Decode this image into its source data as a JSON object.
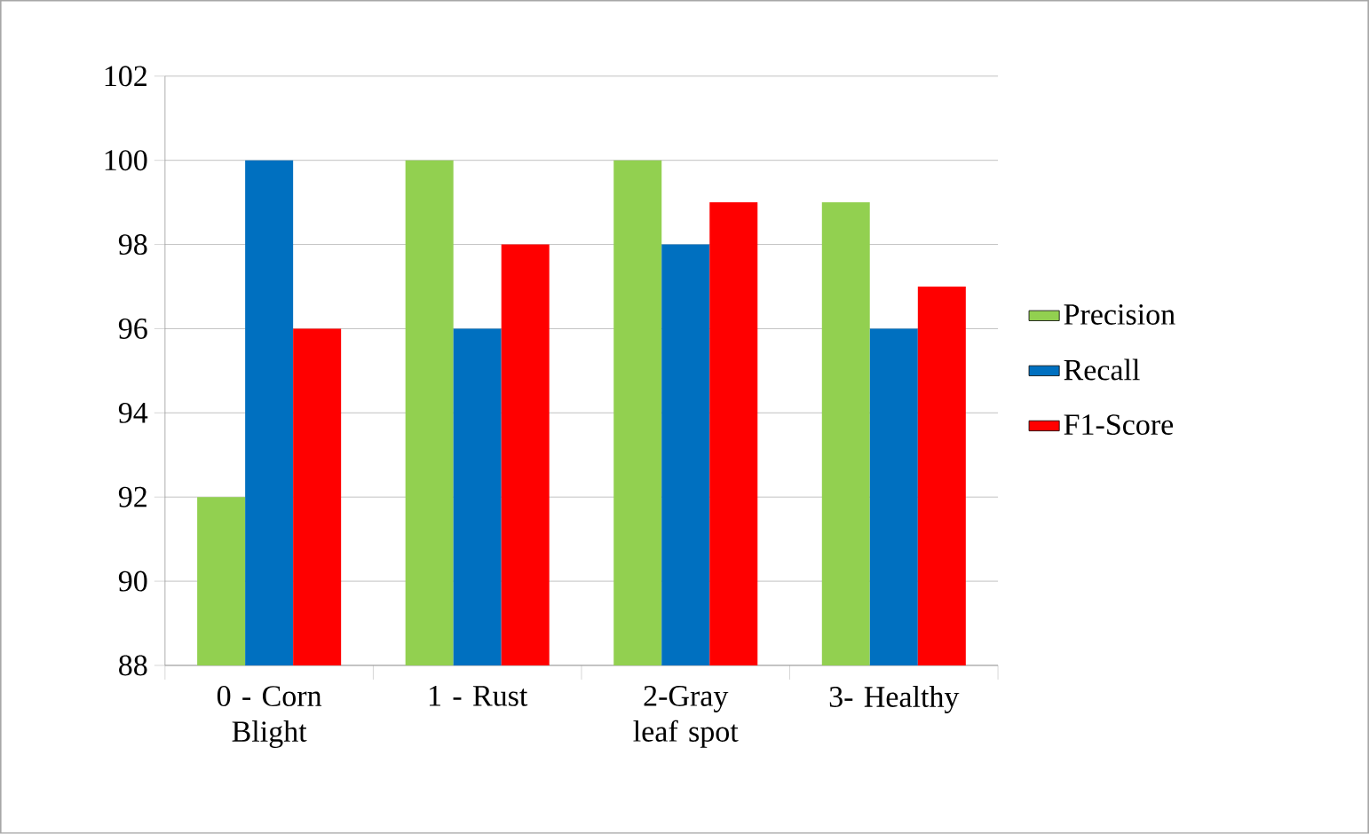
{
  "chart_data": {
    "type": "bar",
    "categories": [
      "0 - Corn Blight",
      "1 - Rust",
      "2-Gray leaf spot",
      "3- Healthy"
    ],
    "series": [
      {
        "name": "Precision",
        "color": "#92d050",
        "values": [
          92,
          100,
          100,
          99
        ]
      },
      {
        "name": "Recall",
        "color": "#0070c0",
        "values": [
          100,
          96,
          98,
          96
        ]
      },
      {
        "name": "F1-Score",
        "color": "#ff0000",
        "values": [
          96,
          98,
          99,
          97
        ]
      }
    ],
    "ylim": [
      88,
      102
    ],
    "yticks": [
      88,
      90,
      92,
      94,
      96,
      98,
      100,
      102
    ],
    "grid": "y",
    "legend": "right"
  }
}
